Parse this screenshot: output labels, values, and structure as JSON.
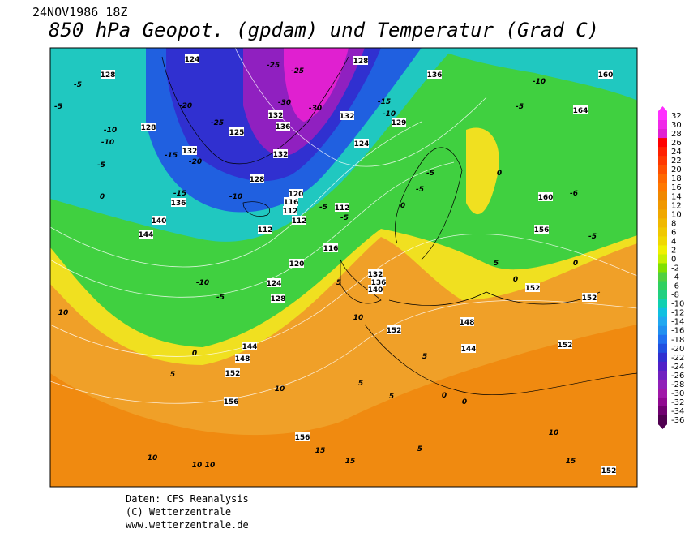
{
  "header": {
    "date": "24NOV1986 18Z",
    "title": "850 hPa Geopot. (gpdam) und  Temperatur (Grad C)"
  },
  "colorbar": {
    "ticks": [
      32,
      30,
      28,
      26,
      24,
      22,
      20,
      18,
      16,
      14,
      12,
      10,
      8,
      6,
      4,
      2,
      0,
      -2,
      -4,
      -6,
      -8,
      -10,
      -12,
      -14,
      -16,
      -18,
      -20,
      -22,
      -24,
      -26,
      -28,
      -30,
      -32,
      -34,
      -36
    ],
    "colors": [
      "#ff30ff",
      "#f028e8",
      "#e020d0",
      "#ff0000",
      "#ff2000",
      "#ff3800",
      "#ff5000",
      "#ff6800",
      "#ff7800",
      "#f08800",
      "#f09800",
      "#f0a800",
      "#f0b800",
      "#f0c800",
      "#f0d800",
      "#f0f000",
      "#c8f000",
      "#80e000",
      "#50d040",
      "#30d060",
      "#20d080",
      "#10d0b0",
      "#10c0e0",
      "#20a8f0",
      "#2090f0",
      "#2070f0",
      "#2050e0",
      "#3030d0",
      "#5020c8",
      "#7020c0",
      "#9020b8",
      "#a018a8",
      "#900890",
      "#700070",
      "#500050"
    ]
  },
  "geopotential_labels": [
    128,
    128,
    132,
    125,
    136,
    140,
    144,
    128,
    120,
    116,
    112,
    112,
    112,
    112,
    116,
    120,
    124,
    128,
    132,
    136,
    140,
    144,
    148,
    152,
    156,
    156,
    152,
    148,
    144,
    152,
    152,
    152,
    152,
    156,
    160,
    164,
    160,
    136,
    132,
    128,
    129,
    136,
    132,
    124,
    132,
    124
  ],
  "temperature_labels": [
    -10,
    -5,
    0,
    5,
    10,
    10,
    10,
    10,
    10,
    15,
    15,
    15,
    10,
    5,
    5,
    0,
    0,
    5,
    10,
    5,
    -20,
    -25,
    -30,
    -30,
    -25,
    -25,
    -15,
    -10,
    -5,
    -5,
    0,
    0,
    -10,
    -5,
    -6,
    -5,
    -5,
    -5,
    -15,
    -10,
    -15,
    -20,
    -10,
    -10,
    -5,
    -5,
    -5,
    0,
    5,
    0,
    0,
    5
  ],
  "footer": {
    "source": "Daten: CFS Reanalysis",
    "copyright": "(C) Wetterzentrale",
    "url": "www.wetterzentrale.de"
  }
}
